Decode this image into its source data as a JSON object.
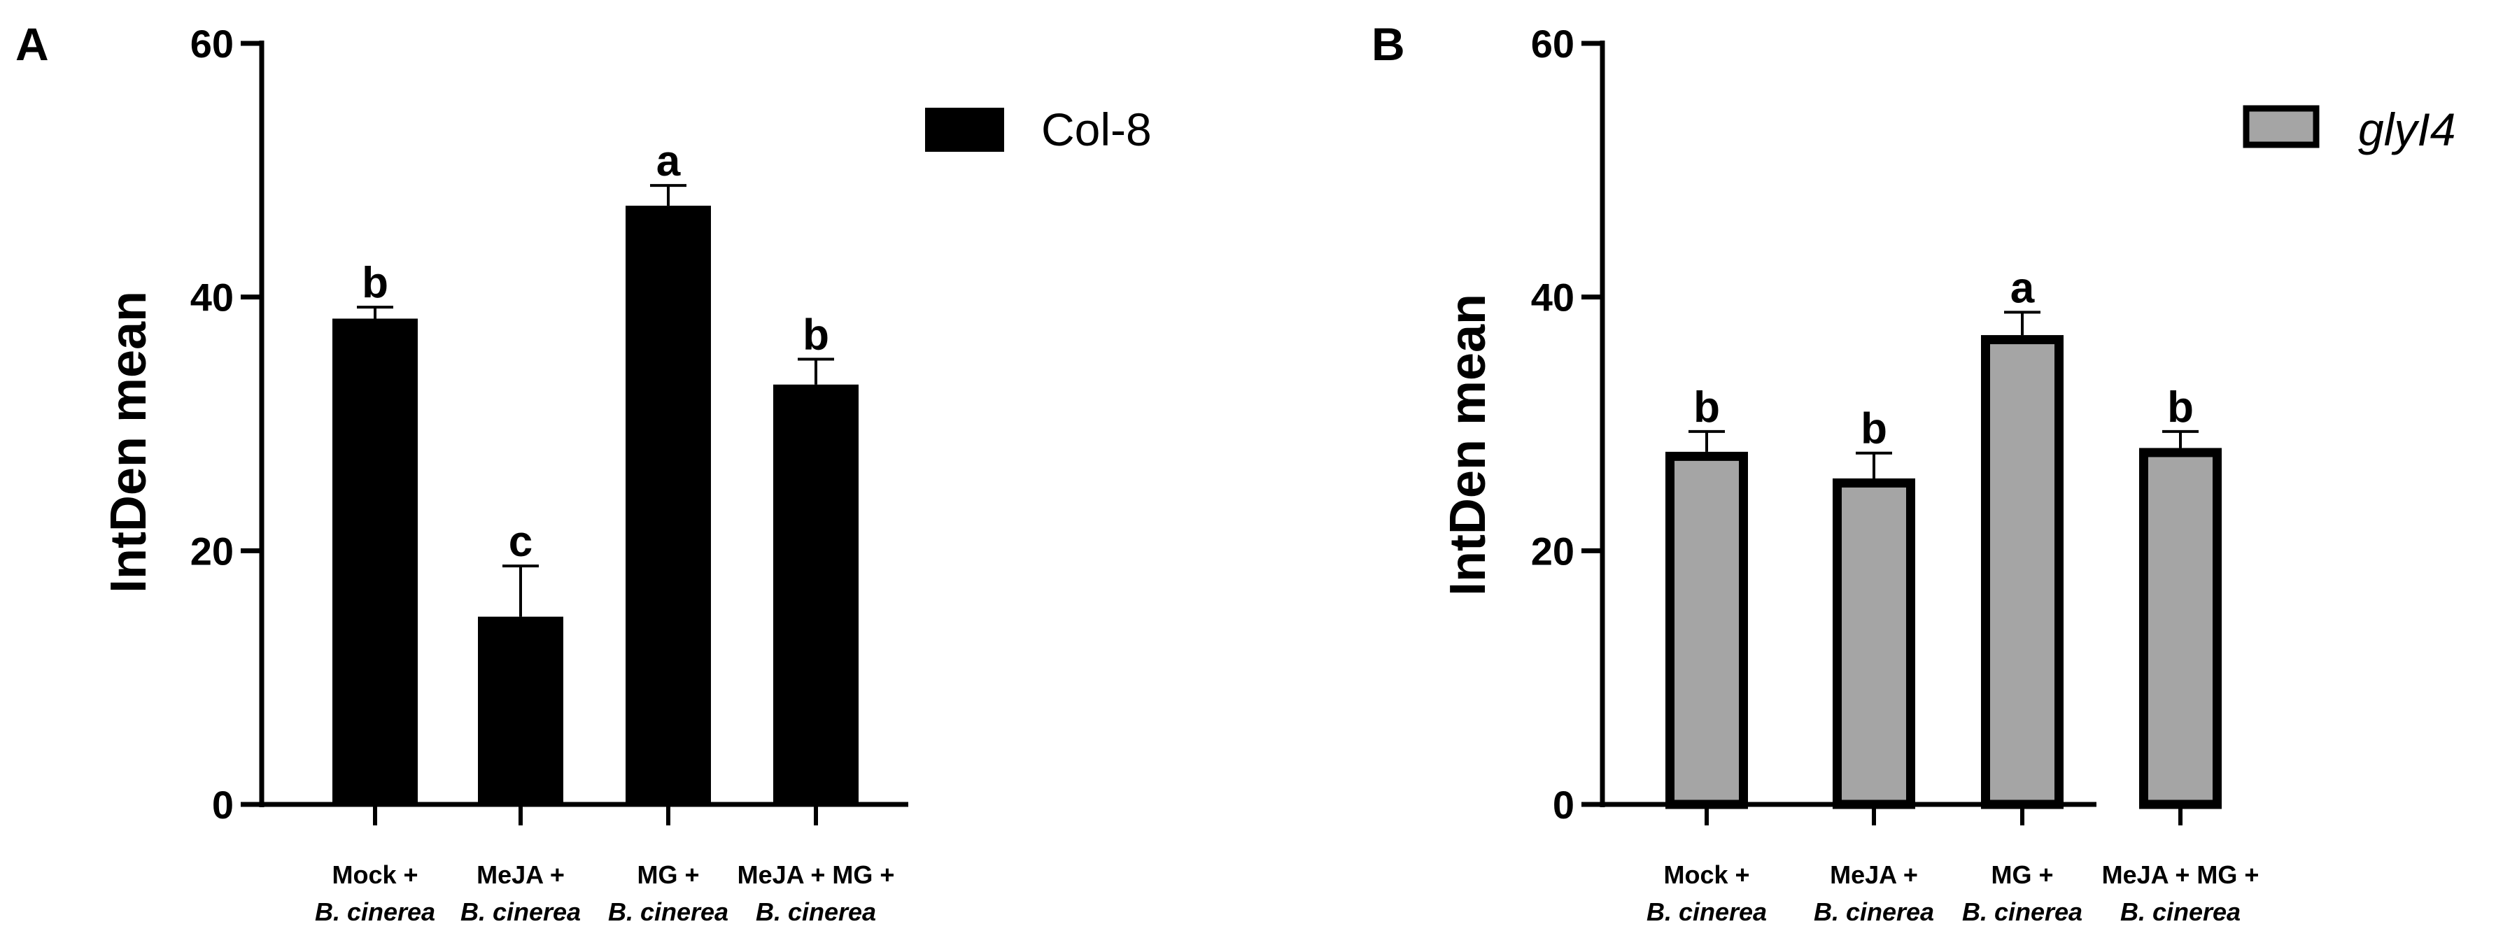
{
  "chart_data": [
    {
      "panel_label": "A",
      "type": "bar",
      "ylabel": "IntDen mean",
      "ylim": [
        0,
        60
      ],
      "yticks": [
        "0",
        "20",
        "40",
        "60"
      ],
      "categories": [
        {
          "line1": "Mock +",
          "line2": "B. cinerea"
        },
        {
          "line1": "MeJA +",
          "line2": "B. cinerea"
        },
        {
          "line1": "MG +",
          "line2": "B. cinerea"
        },
        {
          "line1": "MeJA + MG +",
          "line2": "B. cinerea"
        }
      ],
      "series": [
        {
          "name": "Col-8",
          "values": [
            38.3,
            14.8,
            47.2,
            33.1
          ],
          "errors": [
            0.9,
            4.0,
            1.6,
            2.0
          ],
          "significance": [
            "b",
            "c",
            "a",
            "b"
          ]
        }
      ],
      "legend": {
        "label": "Col-8",
        "italic": false,
        "placement": "top-right"
      },
      "colors": {
        "fill": "#000000",
        "stroke": "#000000"
      }
    },
    {
      "panel_label": "B",
      "type": "bar",
      "ylabel": "IntDen mean",
      "ylim": [
        0,
        60
      ],
      "yticks": [
        "0",
        "20",
        "40",
        "60"
      ],
      "categories": [
        {
          "line1": "Mock +",
          "line2": "B. cinerea"
        },
        {
          "line1": "MeJA +",
          "line2": "B. cinerea"
        },
        {
          "line1": "MG +",
          "line2": "B. cinerea"
        },
        {
          "line1": "MeJA + MG +",
          "line2": "B. cinerea"
        }
      ],
      "series": [
        {
          "name": "glyI4",
          "values": [
            27.8,
            25.7,
            37.0,
            28.1
          ],
          "errors": [
            1.6,
            2.0,
            1.8,
            1.3
          ],
          "significance": [
            "b",
            "b",
            "a",
            "b"
          ]
        }
      ],
      "legend": {
        "label": "glyI4",
        "italic": true,
        "placement": "top-right"
      },
      "colors": {
        "fill": "#a5a5a5",
        "stroke": "#000000"
      }
    }
  ]
}
